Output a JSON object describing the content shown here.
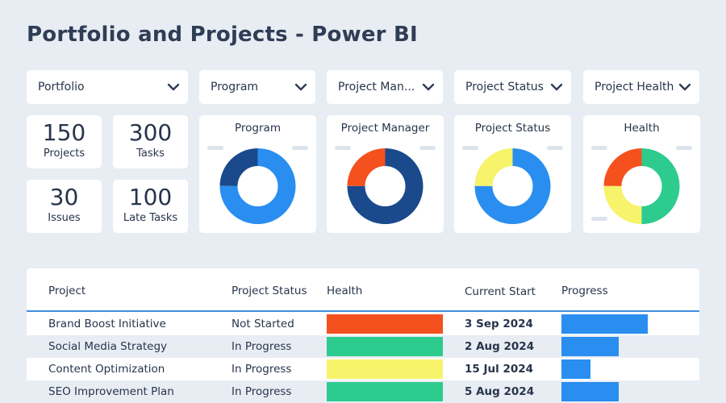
{
  "page_title": "Portfolio and Projects - Power BI",
  "colors": {
    "blue": "#2a8ef0",
    "dark_blue": "#1a4a8c",
    "red": "#f4511e",
    "yellow": "#f7f36b",
    "green": "#2dcb8e",
    "grey": "#dde3eb"
  },
  "filters": [
    {
      "label": "Portfolio",
      "icon": "chevron-down-icon"
    },
    {
      "label": "Program",
      "icon": "chevron-down-icon"
    },
    {
      "label": "Project Man...",
      "icon": "chevron-down-icon"
    },
    {
      "label": "Project Status",
      "icon": "chevron-down-icon"
    },
    {
      "label": "Project Health",
      "icon": "chevron-down-icon"
    }
  ],
  "kpis": [
    {
      "value": "150",
      "label": "Projects"
    },
    {
      "value": "300",
      "label": "Tasks"
    },
    {
      "value": "30",
      "label": "Issues"
    },
    {
      "value": "100",
      "label": "Late Tasks"
    }
  ],
  "donuts": [
    {
      "title": "Program",
      "segments": [
        {
          "share": 0.75,
          "color": "#2a8ef0"
        },
        {
          "share": 0.25,
          "color": "#1a4a8c"
        }
      ]
    },
    {
      "title": "Project Manager",
      "segments": [
        {
          "share": 0.75,
          "color": "#1a4a8c"
        },
        {
          "share": 0.25,
          "color": "#f4511e"
        }
      ]
    },
    {
      "title": "Project Status",
      "segments": [
        {
          "share": 0.75,
          "color": "#2a8ef0"
        },
        {
          "share": 0.25,
          "color": "#f7f36b"
        }
      ]
    },
    {
      "title": "Health",
      "segments": [
        {
          "share": 0.5,
          "color": "#2dcb8e"
        },
        {
          "share": 0.25,
          "color": "#f7f36b"
        },
        {
          "share": 0.25,
          "color": "#f4511e"
        }
      ]
    }
  ],
  "table": {
    "headers": {
      "project": "Project",
      "status": "Project Status",
      "health": "Health",
      "start": "Current Start",
      "progress": "Progress"
    },
    "rows": [
      {
        "project": "Brand Boost Initiative",
        "status": "Not Started",
        "health_color": "#f4511e",
        "start": "3 Sep 2024",
        "progress": 0.6
      },
      {
        "project": "Social Media Strategy",
        "status": "In Progress",
        "health_color": "#2dcb8e",
        "start": "2 Aug 2024",
        "progress": 0.4
      },
      {
        "project": "Content Optimization",
        "status": "In Progress",
        "health_color": "#f7f36b",
        "start": "15 Jul 2024",
        "progress": 0.2
      },
      {
        "project": "SEO Improvement Plan",
        "status": "In Progress",
        "health_color": "#2dcb8e",
        "start": "5 Aug 2024",
        "progress": 0.4
      }
    ]
  }
}
